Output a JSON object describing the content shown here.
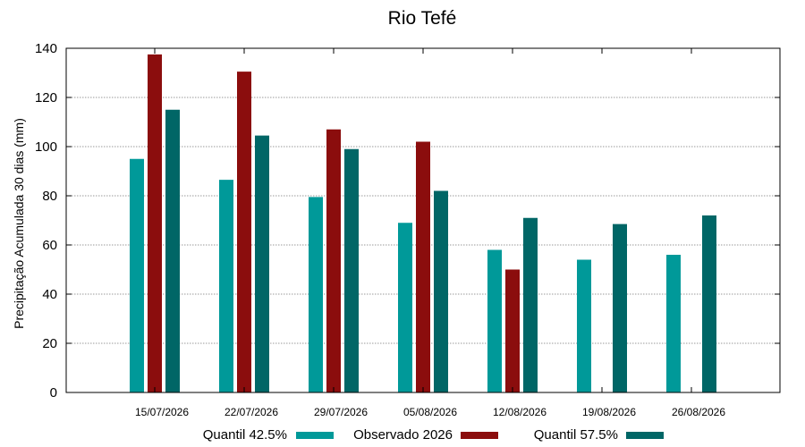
{
  "chart_data": {
    "type": "bar",
    "title": "Rio Tefé",
    "xlabel": "",
    "ylabel": "Precipitação Acumulada 30 dias (mm)",
    "ylim": [
      0,
      140
    ],
    "yticks": [
      0,
      20,
      40,
      60,
      80,
      100,
      120,
      140
    ],
    "grid": true,
    "legend_position": "bottom",
    "categories": [
      "15/07/2026",
      "22/07/2026",
      "29/07/2026",
      "05/08/2026",
      "12/08/2026",
      "19/08/2026",
      "26/08/2026"
    ],
    "series": [
      {
        "name": "Quantil 42.5%",
        "color": "#009999",
        "values": [
          95,
          86.5,
          79.5,
          69,
          58,
          54,
          56
        ]
      },
      {
        "name": "Observado 2026",
        "color": "#8b0d0d",
        "values": [
          137.5,
          130.5,
          107,
          102,
          50,
          null,
          null
        ]
      },
      {
        "name": "Quantil 57.5%",
        "color": "#006666",
        "values": [
          115,
          104.5,
          99,
          82,
          71,
          68.5,
          72
        ]
      }
    ]
  }
}
